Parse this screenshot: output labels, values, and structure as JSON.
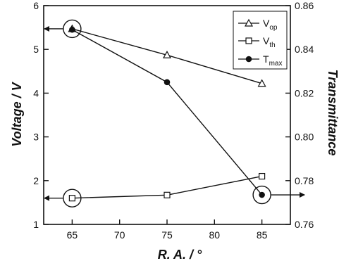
{
  "chart_data": {
    "type": "line",
    "x": [
      65,
      75,
      85
    ],
    "xlabel": "R. A. / °",
    "ylabel_left": "Voltage / V",
    "ylabel_right": "Transmittance",
    "xlim": [
      62,
      88
    ],
    "ylim_left": [
      1,
      6
    ],
    "ylim_right": [
      0.76,
      0.86
    ],
    "x_ticks": [
      65,
      70,
      75,
      80,
      85
    ],
    "y_ticks_left": [
      1,
      2,
      3,
      4,
      5,
      6
    ],
    "y_ticks_right": [
      0.76,
      0.78,
      0.8,
      0.82,
      0.84,
      0.86
    ],
    "legend_position": "top-right",
    "series": [
      {
        "name": "V",
        "sub": "op",
        "axis": "left",
        "marker": "triangle-open",
        "values": [
          5.47,
          4.87,
          4.22
        ]
      },
      {
        "name": "V",
        "sub": "th",
        "axis": "left",
        "marker": "square-open",
        "values": [
          1.6,
          1.67,
          2.1
        ]
      },
      {
        "name": "T",
        "sub": "max",
        "axis": "right",
        "marker": "circle-filled",
        "values": [
          0.849,
          0.825,
          0.7735
        ]
      }
    ],
    "annotations": [
      {
        "type": "circle-with-arrow",
        "target_series": 0,
        "point_index": 0,
        "arrow_direction": "left"
      },
      {
        "type": "circle-with-arrow",
        "target_series": 1,
        "point_index": 0,
        "arrow_direction": "left"
      },
      {
        "type": "circle-with-arrow",
        "target_series": 2,
        "point_index": 2,
        "arrow_direction": "right"
      }
    ]
  }
}
